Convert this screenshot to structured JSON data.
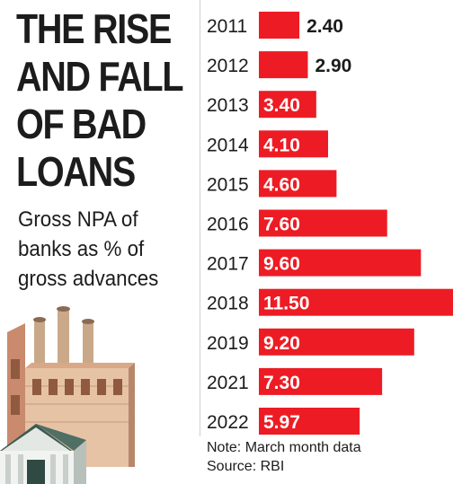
{
  "title_lines": [
    "THE RISE",
    "AND FALL",
    "OF BAD",
    "LOANS"
  ],
  "subtitle_lines": [
    "Gross NPA of",
    "banks as % of",
    "gross advances"
  ],
  "note": "Note: March month data",
  "source": "Source: RBI",
  "colors": {
    "bar": "#ed1c24",
    "text": "#1c1c1c",
    "value_on_bar": "#ffffff",
    "value_outside": "#1c1c1c"
  },
  "chart_data": {
    "type": "bar",
    "orientation": "horizontal",
    "title": "THE RISE AND FALL OF BAD LOANS",
    "subtitle": "Gross NPA of banks as % of gross advances",
    "categories": [
      "2011",
      "2012",
      "2013",
      "2014",
      "2015",
      "2016",
      "2017",
      "2018",
      "2019",
      "2021",
      "2022"
    ],
    "values": [
      2.4,
      2.9,
      3.4,
      4.1,
      4.6,
      7.6,
      9.6,
      11.5,
      9.2,
      7.3,
      5.97
    ],
    "value_labels": [
      "2.40",
      "2.90",
      "3.40",
      "4.10",
      "4.60",
      "7.60",
      "9.60",
      "11.50",
      "9.20",
      "7.30",
      "5.97"
    ],
    "xlim": [
      0,
      11.5
    ],
    "grid": false,
    "legend": "none"
  }
}
